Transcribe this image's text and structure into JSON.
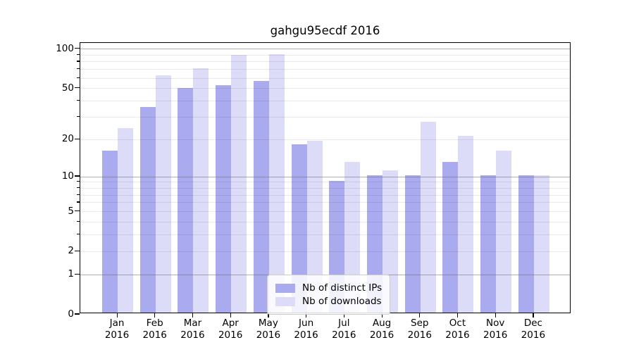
{
  "chart_data": {
    "type": "bar",
    "title": "gahgu95ecdf 2016",
    "y_scale": "log1p",
    "grid": true,
    "categories": [
      "Jan",
      "Feb",
      "Mar",
      "Apr",
      "May",
      "Jun",
      "Jul",
      "Aug",
      "Sep",
      "Oct",
      "Nov",
      "Dec"
    ],
    "year_label": "2016",
    "series": [
      {
        "name": "Nb of distinct IPs",
        "color": "#aaaaee",
        "values": [
          16,
          35,
          49,
          52,
          56,
          18,
          9,
          10,
          10,
          13,
          10,
          10
        ]
      },
      {
        "name": "Nb of downloads",
        "color": "#dcdcf8",
        "values": [
          24,
          62,
          70,
          88,
          90,
          19,
          13,
          11,
          27,
          21,
          16,
          10
        ]
      }
    ],
    "ylim": [
      0,
      110
    ],
    "y_tick_labels": [
      "100",
      "50",
      "20",
      "10",
      "5",
      "2",
      "1",
      "0"
    ],
    "y_tick_values": [
      100,
      50,
      20,
      10,
      5,
      2,
      1,
      0
    ],
    "y_grid_major": [
      1,
      10,
      100
    ],
    "y_grid_minor": [
      2,
      3,
      4,
      5,
      6,
      7,
      8,
      9,
      20,
      30,
      40,
      50,
      60,
      70,
      80,
      90
    ],
    "legend_position": "lower center"
  }
}
